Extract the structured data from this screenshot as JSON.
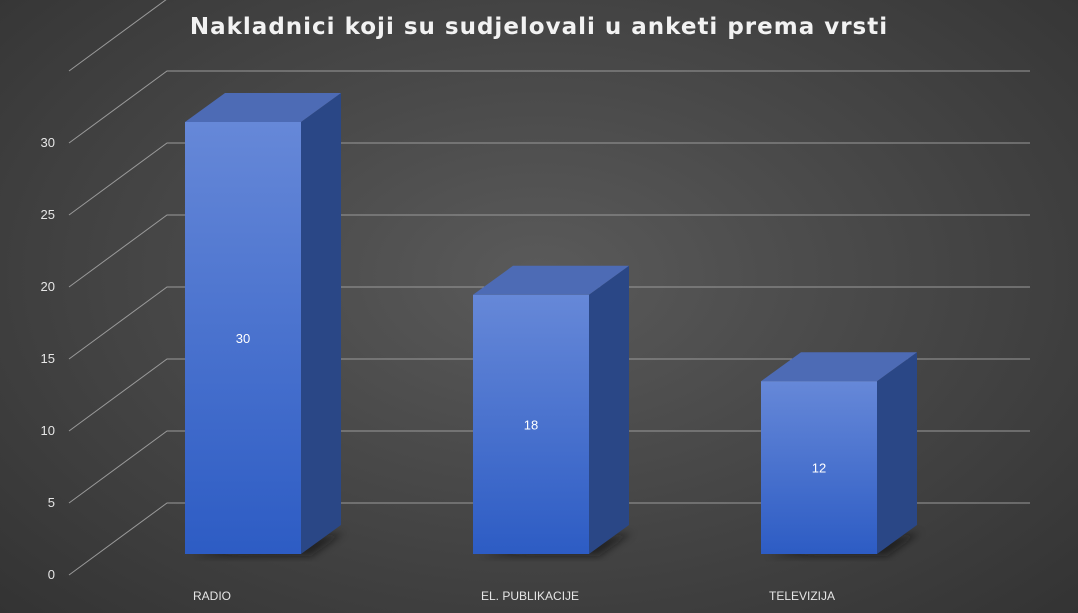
{
  "chart_data": {
    "type": "bar",
    "title": "Nakladnici koji su sudjelovali u anketi prema vrsti",
    "categories": [
      "RADIO",
      "EL. PUBLIKACIJE",
      "TELEVIZIJA"
    ],
    "values": [
      30,
      18,
      12
    ],
    "data_labels": [
      "30",
      "18",
      "12"
    ],
    "yticks": [
      "0",
      "5",
      "10",
      "15",
      "20",
      "25",
      "30"
    ],
    "ylim": [
      0,
      35
    ],
    "grid": true,
    "legend": "none",
    "colors": {
      "bar_front_top": "#6688d8",
      "bar_front_bottom": "#2d5cc4",
      "bar_side": "#2a4786",
      "bar_top": "#4d6bb5",
      "gridline": "#9a9a9a",
      "text": "#e6e6e6"
    }
  }
}
